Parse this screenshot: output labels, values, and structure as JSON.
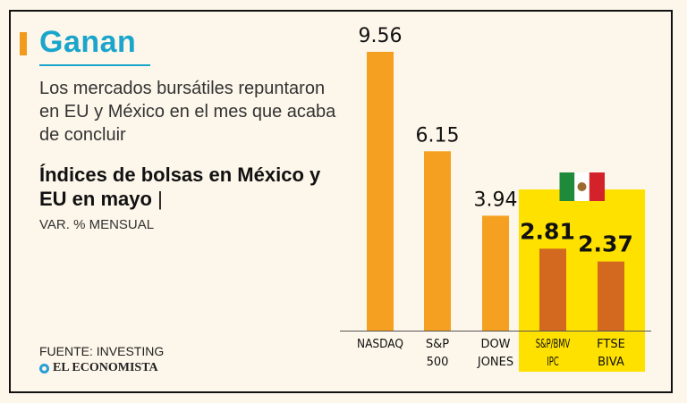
{
  "headline": "Ganan",
  "deck": "Los mercados bursátiles repuntaron en EU y México en el mes que acaba de concluir",
  "source": "FUENTE: INVESTING",
  "brand": "EL ECONOMISTA",
  "colors": {
    "accent": "#1aa6cc",
    "headline_bar": "#f29a1c",
    "bar": "#f5a020",
    "bar_highlight": "#d2691e",
    "highlight_panel": "#ffe100",
    "flag_green": "#1e8a3a",
    "flag_red": "#d3222a",
    "flag_white": "#ffffff"
  },
  "flag_icon": "mexico-flag-icon",
  "chart_data": {
    "type": "bar",
    "title": "Índices de bolsas en México y EU en mayo",
    "title_separator": "|",
    "subtitle": "VAR. % MENSUAL",
    "categories": [
      "NASDAQ",
      "S&P 500",
      "DOW JONES",
      "S&P/BMV IPC",
      "FTSE BIVA"
    ],
    "category_lines": [
      [
        "NASDAQ"
      ],
      [
        "S&P",
        "500"
      ],
      [
        "DOW",
        "JONES"
      ],
      [
        "S&P/BMV",
        "IPC"
      ],
      [
        "FTSE",
        "BIVA"
      ]
    ],
    "values": [
      9.56,
      6.15,
      3.94,
      2.81,
      2.37
    ],
    "value_labels": [
      "9.56",
      "6.15",
      "3.94",
      "2.81",
      "2.37"
    ],
    "highlighted": [
      false,
      false,
      false,
      true,
      true
    ],
    "ylim": [
      0,
      10
    ],
    "grid": false,
    "xlabel": "",
    "ylabel": ""
  }
}
